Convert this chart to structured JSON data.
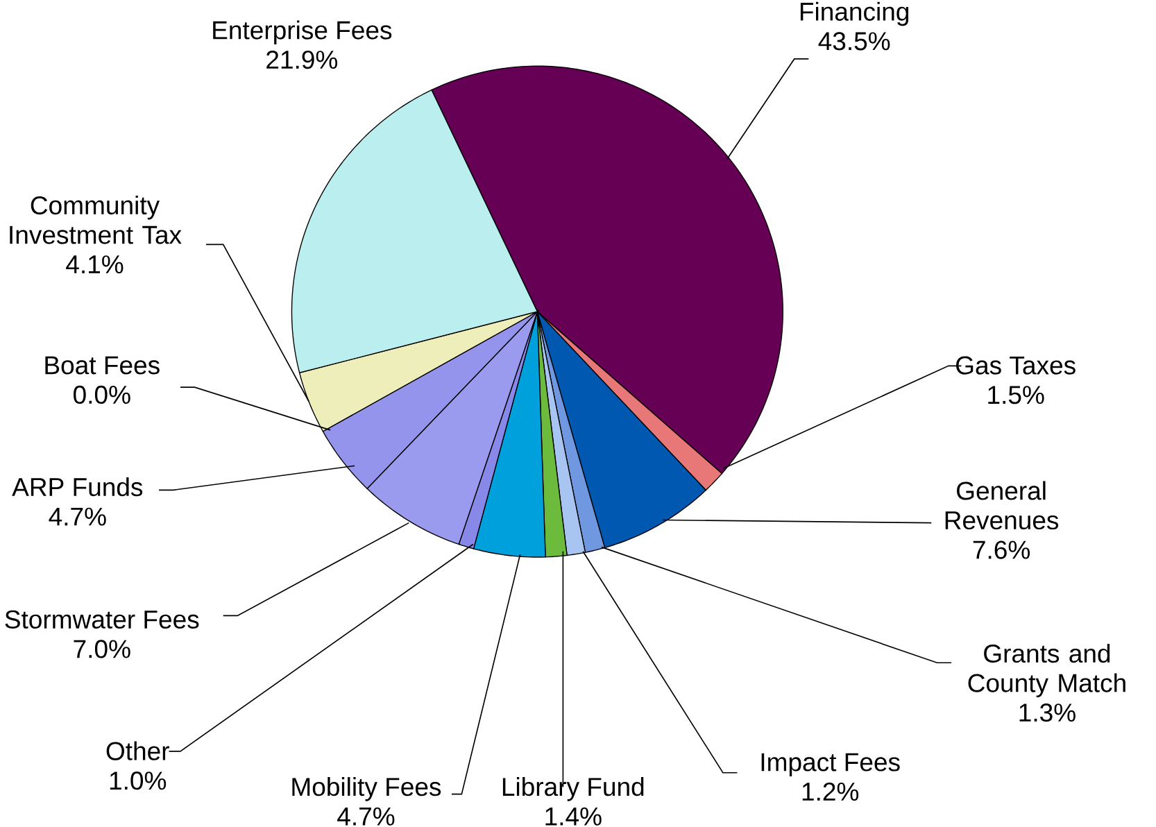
{
  "chart_data": {
    "type": "pie",
    "categories": [
      "Financing",
      "Gas Taxes",
      "General Revenues",
      "Grants and County Match",
      "Impact Fees",
      "Library Fund",
      "Mobility Fees",
      "Other",
      "Stormwater Fees",
      "ARP Funds",
      "Boat Fees",
      "Community Investment Tax",
      "Enterprise Fees"
    ],
    "values": [
      43.5,
      1.5,
      7.6,
      1.3,
      1.2,
      1.4,
      4.7,
      1.0,
      7.0,
      4.7,
      0.0,
      4.1,
      21.9
    ],
    "value_labels": [
      "43.5%",
      "1.5%",
      "7.6%",
      "1.3%",
      "1.2%",
      "1.4%",
      "4.7%",
      "1.0%",
      "7.0%",
      "4.7%",
      "0.0%",
      "4.1%",
      "21.9%"
    ],
    "colors": [
      "#660055",
      "#e87878",
      "#0058b0",
      "#6f98e0",
      "#a8c4f0",
      "#6cbb3c",
      "#00a0dc",
      "#8888e8",
      "#9a9aee",
      "#9494ec",
      "#d0d0f0",
      "#eeeebb",
      "#bbeeee"
    ]
  }
}
